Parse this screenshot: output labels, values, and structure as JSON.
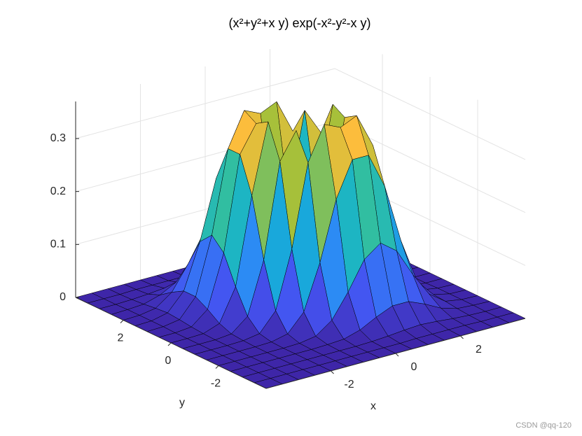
{
  "chart_data": {
    "type": "surface",
    "title": "(x²+y²+x y) exp(-x²-y²-x y)",
    "xlabel": "x",
    "ylabel": "y",
    "x": [
      -4,
      -3.5,
      -3,
      -2.5,
      -2,
      -1.5,
      -1,
      -0.5,
      0,
      0.5,
      1,
      1.5,
      2,
      2.5,
      3,
      3.5,
      4
    ],
    "y": [
      -4,
      -3.5,
      -3,
      -2.5,
      -2,
      -1.5,
      -1,
      -0.5,
      0,
      0.5,
      1,
      1.5,
      2,
      2.5,
      3,
      3.5,
      4
    ],
    "z": [
      [
        0,
        0,
        0,
        0,
        0,
        0,
        0,
        0,
        0,
        0,
        0,
        0,
        0,
        0,
        0,
        0,
        0
      ],
      [
        0,
        0,
        0,
        0,
        0,
        0,
        0,
        0,
        0,
        0,
        0.001,
        0.001,
        0.001,
        0.001,
        0,
        0,
        0
      ],
      [
        0,
        0,
        0,
        0,
        0,
        0,
        0,
        0,
        0.001,
        0.003,
        0.006,
        0.008,
        0.006,
        0.003,
        0.001,
        0,
        0
      ],
      [
        0,
        0,
        0,
        0,
        0,
        0,
        0.001,
        0.003,
        0.012,
        0.028,
        0.041,
        0.041,
        0.028,
        0.012,
        0.003,
        0.001,
        0
      ],
      [
        0,
        0,
        0,
        0,
        0,
        0.001,
        0.006,
        0.028,
        0.073,
        0.126,
        0.149,
        0.126,
        0.073,
        0.028,
        0.006,
        0.001,
        0
      ],
      [
        0,
        0,
        0,
        0,
        0.001,
        0.008,
        0.041,
        0.126,
        0.237,
        0.304,
        0.304,
        0.237,
        0.126,
        0.041,
        0.008,
        0.001,
        0
      ],
      [
        0,
        0,
        0,
        0.001,
        0.006,
        0.041,
        0.149,
        0.304,
        0.368,
        0.354,
        0.368,
        0.304,
        0.149,
        0.041,
        0.006,
        0.001,
        0
      ],
      [
        0,
        0,
        0,
        0.003,
        0.028,
        0.126,
        0.304,
        0.354,
        0.195,
        0.195,
        0.354,
        0.304,
        0.126,
        0.028,
        0.003,
        0,
        0
      ],
      [
        0,
        0,
        0.001,
        0.012,
        0.073,
        0.237,
        0.368,
        0.195,
        0,
        0.195,
        0.368,
        0.237,
        0.073,
        0.012,
        0.001,
        0,
        0
      ],
      [
        0,
        0,
        0.003,
        0.028,
        0.126,
        0.304,
        0.354,
        0.195,
        0.195,
        0.354,
        0.304,
        0.126,
        0.028,
        0.003,
        0,
        0,
        0
      ],
      [
        0,
        0.001,
        0.006,
        0.041,
        0.149,
        0.304,
        0.368,
        0.354,
        0.368,
        0.304,
        0.149,
        0.041,
        0.006,
        0.001,
        0,
        0,
        0
      ],
      [
        0,
        0.001,
        0.008,
        0.041,
        0.126,
        0.237,
        0.304,
        0.304,
        0.237,
        0.126,
        0.041,
        0.008,
        0.001,
        0,
        0,
        0,
        0
      ],
      [
        0,
        0.001,
        0.006,
        0.028,
        0.073,
        0.126,
        0.149,
        0.126,
        0.073,
        0.028,
        0.006,
        0.001,
        0,
        0,
        0,
        0,
        0
      ],
      [
        0,
        0.001,
        0.003,
        0.012,
        0.028,
        0.041,
        0.041,
        0.028,
        0.012,
        0.003,
        0.001,
        0,
        0,
        0,
        0,
        0,
        0
      ],
      [
        0,
        0,
        0.001,
        0.003,
        0.006,
        0.008,
        0.006,
        0.003,
        0.001,
        0,
        0,
        0,
        0,
        0,
        0,
        0,
        0
      ],
      [
        0,
        0,
        0,
        0.001,
        0.001,
        0.001,
        0.001,
        0,
        0,
        0,
        0,
        0,
        0,
        0,
        0,
        0,
        0
      ],
      [
        0,
        0,
        0,
        0,
        0,
        0,
        0,
        0,
        0,
        0,
        0,
        0,
        0,
        0,
        0,
        0,
        0
      ]
    ],
    "xlim": [
      -4,
      4
    ],
    "ylim": [
      -4,
      4
    ],
    "zlim": [
      0,
      0.37
    ],
    "xticks": [
      -2,
      0,
      2
    ],
    "yticks": [
      -2,
      0,
      2
    ],
    "zticks": [
      0,
      0.1,
      0.2,
      0.3
    ],
    "colormap": "parula",
    "edgecolor": "#000000",
    "grid": true,
    "watermark": "CSDN @qq-120"
  }
}
